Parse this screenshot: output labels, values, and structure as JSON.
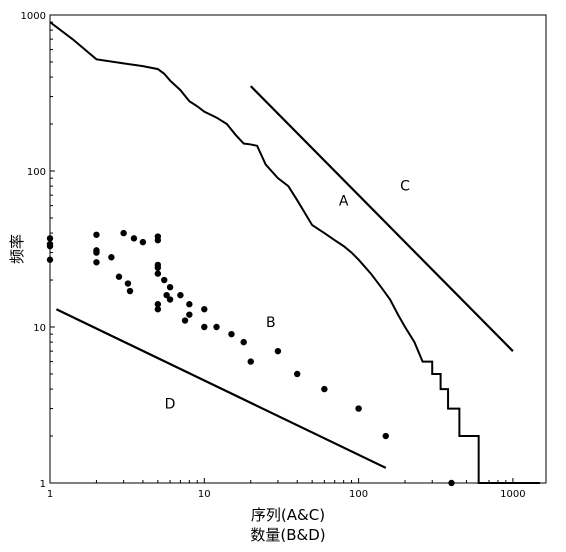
{
  "chart_data": {
    "type": "scatter",
    "title": "",
    "xlabel_lines": [
      "序列(A&C)",
      "数量(B&D)"
    ],
    "ylabel": "频率",
    "xscale": "log",
    "yscale": "log",
    "xlim": [
      1,
      1500
    ],
    "ylim": [
      1,
      1000
    ],
    "grid": false,
    "legend": "none",
    "xticks": [
      1,
      10,
      100,
      1000
    ],
    "xtick_labels": [
      "1",
      "10",
      "100",
      "1000"
    ],
    "yticks": [
      1,
      10,
      100,
      1000
    ],
    "ytick_labels": [
      "1",
      "10",
      "100",
      "1000"
    ],
    "series": [
      {
        "name": "A",
        "style": "step-line",
        "x": [
          1,
          1.4,
          2,
          3,
          4,
          5,
          5.5,
          6,
          7,
          8,
          9,
          10,
          12,
          14,
          16,
          18,
          20,
          22,
          25,
          30,
          35,
          40,
          50,
          60,
          70,
          80,
          90,
          100,
          120,
          140,
          160,
          180,
          200,
          230,
          260,
          300,
          340,
          380,
          400,
          450,
          500,
          550,
          600,
          700,
          900,
          1100,
          1200,
          1300,
          1400,
          1500
        ],
        "y": [
          900,
          700,
          520,
          490,
          470,
          450,
          420,
          380,
          330,
          280,
          260,
          240,
          220,
          200,
          170,
          150,
          148,
          145,
          110,
          90,
          80,
          65,
          45,
          40,
          36,
          33,
          30,
          27,
          22,
          18,
          15,
          12,
          10,
          8,
          6,
          5,
          4,
          3,
          3,
          2,
          2,
          2,
          1,
          1,
          1,
          1,
          1,
          1,
          1,
          1
        ]
      },
      {
        "name": "B",
        "style": "points",
        "x": [
          1,
          1,
          1,
          1,
          2,
          2,
          2,
          2,
          2.5,
          2.8,
          3,
          3.2,
          3.3,
          3.5,
          4,
          5,
          5,
          5,
          5,
          5,
          5,
          5,
          5.5,
          5.7,
          6,
          6,
          7,
          7.5,
          8,
          8,
          10,
          10,
          12,
          15,
          18,
          20,
          30,
          40,
          60,
          100,
          150,
          400
        ],
        "y": [
          37,
          34,
          33,
          27,
          39,
          31,
          30,
          26,
          28,
          21,
          40,
          19,
          17,
          37,
          35,
          38,
          36,
          25,
          24,
          22,
          14,
          13,
          20,
          16,
          18,
          15,
          16,
          11,
          14,
          12,
          13,
          10,
          10,
          9,
          8,
          6,
          7,
          5,
          4,
          3,
          2,
          1
        ]
      },
      {
        "name": "C",
        "style": "line",
        "x": [
          20,
          1000
        ],
        "y": [
          350,
          7
        ]
      },
      {
        "name": "D",
        "style": "line",
        "x": [
          1.1,
          150
        ],
        "y": [
          13,
          1.25
        ]
      }
    ],
    "annotations": [
      {
        "text": "A",
        "x": 80,
        "y": 60
      },
      {
        "text": "B",
        "x": 27,
        "y": 10
      },
      {
        "text": "C",
        "x": 200,
        "y": 75
      },
      {
        "text": "D",
        "x": 6,
        "y": 3
      }
    ]
  }
}
